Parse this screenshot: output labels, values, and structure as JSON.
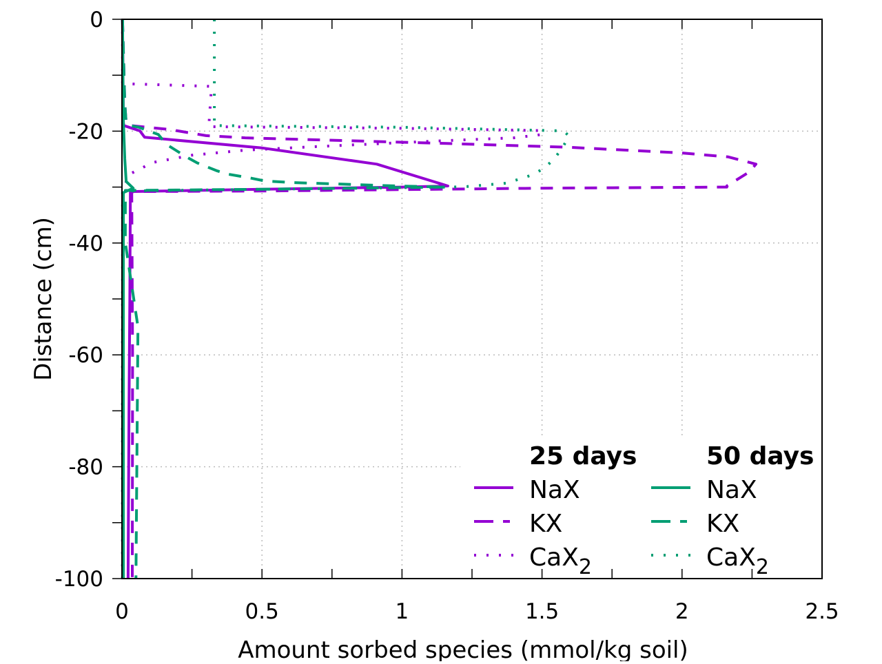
{
  "chart_data": {
    "type": "line",
    "title": "",
    "xlabel": "Amount sorbed species (mmol/kg soil)",
    "ylabel": "Distance (cm)",
    "xlim": [
      0,
      2.5
    ],
    "ylim": [
      -100,
      0
    ],
    "xticks": [
      0,
      0.5,
      1,
      1.5,
      2,
      2.5
    ],
    "xtick_labels": [
      "0",
      "0.5",
      "1",
      "1.5",
      "2",
      "2.5"
    ],
    "yticks": [
      0,
      -20,
      -40,
      -60,
      -80,
      -100
    ],
    "ytick_labels": [
      "0",
      "-20",
      "-40",
      "-60",
      "-80",
      "-100"
    ],
    "grid": true,
    "legend_placement": "bottom-right",
    "legend_groups": [
      {
        "title": "25 days",
        "color": "#9400d3"
      },
      {
        "title": "50 days",
        "color": "#009e73"
      }
    ],
    "series": [
      {
        "name": "NaX",
        "sub": "",
        "group": "25 days",
        "color": "#9400d3",
        "style": "solid",
        "points": [
          [
            0.002,
            0
          ],
          [
            0.005,
            -18.5
          ],
          [
            0.007,
            -19.0
          ],
          [
            0.064,
            -19.95
          ],
          [
            0.081,
            -21.1
          ],
          [
            0.5,
            -23.0
          ],
          [
            0.91,
            -25.9
          ],
          [
            1.164,
            -29.8
          ],
          [
            1.0,
            -30.0
          ],
          [
            0.5,
            -30.4
          ],
          [
            0.03,
            -30.8
          ],
          [
            0.03,
            -31
          ],
          [
            0.028,
            -50
          ],
          [
            0.025,
            -70
          ],
          [
            0.022,
            -100
          ]
        ]
      },
      {
        "name": "KX",
        "sub": "",
        "group": "25 days",
        "color": "#9400d3",
        "style": "dashed",
        "points": [
          [
            0.002,
            0
          ],
          [
            0.01,
            -15
          ],
          [
            0.015,
            -18.5
          ],
          [
            0.03,
            -19
          ],
          [
            0.17,
            -19.7
          ],
          [
            0.3,
            -20.8
          ],
          [
            0.44,
            -21.2
          ],
          [
            0.8,
            -21.7
          ],
          [
            1.16,
            -22.2
          ],
          [
            1.6,
            -22.9
          ],
          [
            2.0,
            -23.9
          ],
          [
            2.165,
            -24.6
          ],
          [
            2.264,
            -25.9
          ],
          [
            2.24,
            -27.3
          ],
          [
            2.16,
            -29.8
          ],
          [
            2.16,
            -30.0
          ],
          [
            1.5,
            -30.2
          ],
          [
            0.5,
            -30.7
          ],
          [
            0.04,
            -30.8
          ],
          [
            0.035,
            -31
          ],
          [
            0.038,
            -60
          ],
          [
            0.037,
            -100
          ]
        ]
      },
      {
        "name": "CaX",
        "sub": "2",
        "group": "25 days",
        "color": "#9400d3",
        "style": "dotted",
        "points": [
          [
            0.002,
            0
          ],
          [
            0.002,
            -11.5
          ],
          [
            0.32,
            -12
          ],
          [
            0.31,
            -19.2
          ],
          [
            1.0,
            -19.5
          ],
          [
            1.5,
            -19.9
          ],
          [
            1.5,
            -20.6
          ],
          [
            1.4,
            -21.2
          ],
          [
            1.065,
            -21.9
          ],
          [
            0.68,
            -22.8
          ],
          [
            0.44,
            -23.4
          ],
          [
            0.25,
            -24.3
          ],
          [
            0.11,
            -25.6
          ],
          [
            0.027,
            -27.7
          ],
          [
            0.003,
            -30.4
          ],
          [
            0.002,
            -60
          ],
          [
            0.002,
            -100
          ]
        ]
      },
      {
        "name": "NaX",
        "sub": "",
        "group": "50 days",
        "color": "#009e73",
        "style": "solid",
        "points": [
          [
            0.002,
            0
          ],
          [
            0.005,
            -18
          ],
          [
            0.01,
            -25
          ],
          [
            0.015,
            -29
          ],
          [
            0.04,
            -30.2
          ],
          [
            0.005,
            -31
          ],
          [
            0.005,
            -60
          ],
          [
            0.005,
            -100
          ]
        ]
      },
      {
        "name": "KX",
        "sub": "",
        "group": "50 days",
        "color": "#009e73",
        "style": "dashed",
        "points": [
          [
            0.002,
            0
          ],
          [
            0.01,
            -15
          ],
          [
            0.015,
            -18.5
          ],
          [
            0.03,
            -19
          ],
          [
            0.06,
            -19.3
          ],
          [
            0.13,
            -20.6
          ],
          [
            0.16,
            -22.4
          ],
          [
            0.23,
            -24.6
          ],
          [
            0.27,
            -25.7
          ],
          [
            0.34,
            -27.1
          ],
          [
            0.38,
            -27.7
          ],
          [
            0.46,
            -28.4
          ],
          [
            0.51,
            -28.9
          ],
          [
            0.61,
            -29.2
          ],
          [
            0.8,
            -29.5
          ],
          [
            0.98,
            -29.8
          ],
          [
            1.16,
            -30.0
          ],
          [
            0.5,
            -30.4
          ],
          [
            0.012,
            -30.6
          ],
          [
            0.012,
            -40
          ],
          [
            0.027,
            -45
          ],
          [
            0.057,
            -55
          ],
          [
            0.05,
            -100
          ]
        ]
      },
      {
        "name": "CaX",
        "sub": "2",
        "group": "50 days",
        "color": "#009e73",
        "style": "dotted",
        "points": [
          [
            0.33,
            0
          ],
          [
            0.33,
            -19
          ],
          [
            1.0,
            -19.3
          ],
          [
            1.577,
            -19.95
          ],
          [
            1.597,
            -20.9
          ],
          [
            1.572,
            -23
          ],
          [
            1.543,
            -25
          ],
          [
            1.508,
            -26.6
          ],
          [
            1.467,
            -27.8
          ],
          [
            1.373,
            -29.3
          ],
          [
            1.233,
            -29.9
          ],
          [
            1.18,
            -30.0
          ],
          [
            0.5,
            -30.4
          ],
          [
            0.002,
            -30.7
          ],
          [
            0.002,
            -60
          ],
          [
            0.002,
            -100
          ]
        ]
      }
    ]
  }
}
